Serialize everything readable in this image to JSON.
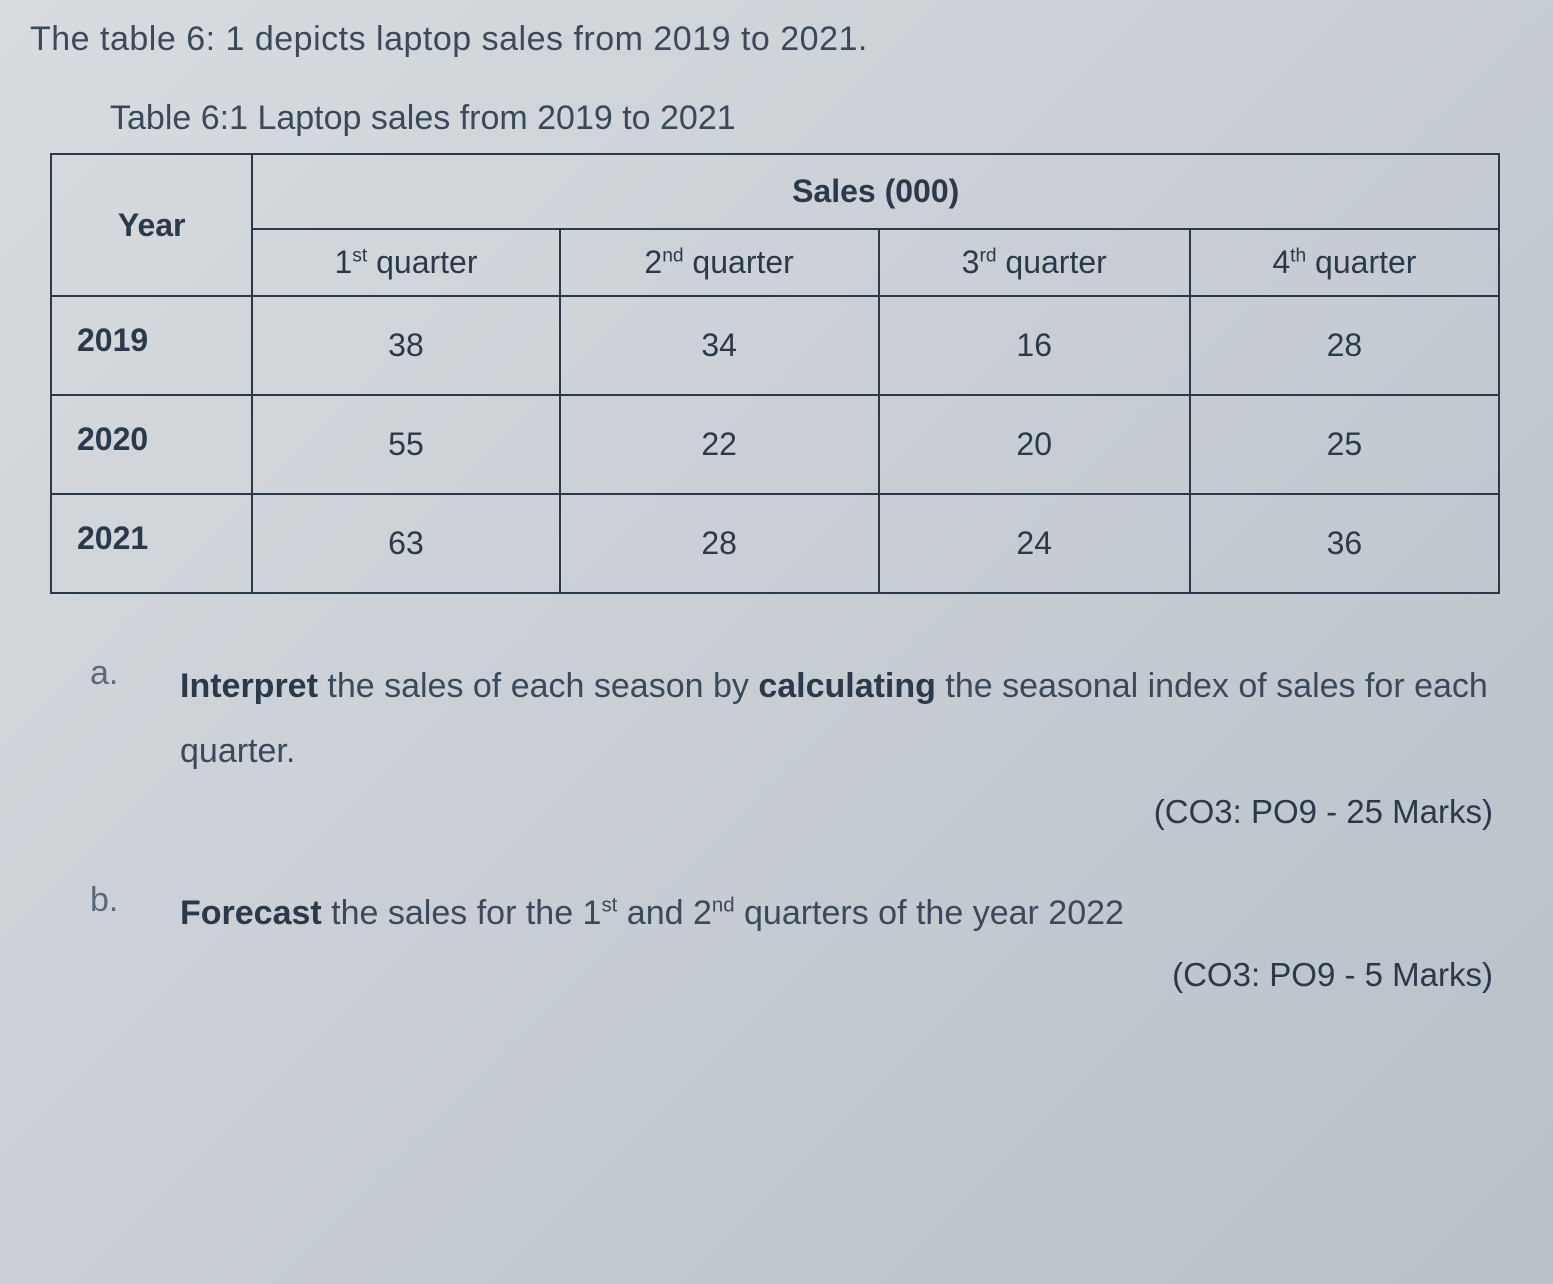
{
  "intro": "The table 6: 1 depicts laptop sales from 2019 to 2021.",
  "table": {
    "caption": "Table 6:1  Laptop sales from 2019 to 2021",
    "year_header": "Year",
    "sales_header": "Sales (000)",
    "columns": [
      {
        "ord": "1",
        "sup": "st",
        "label": " quarter"
      },
      {
        "ord": "2",
        "sup": "nd",
        "label": " quarter"
      },
      {
        "ord": "3",
        "sup": "rd",
        "label": " quarter"
      },
      {
        "ord": "4",
        "sup": "th",
        "label": " quarter"
      }
    ],
    "rows": [
      {
        "year": "2019",
        "values": [
          "38",
          "34",
          "16",
          "28"
        ]
      },
      {
        "year": "2020",
        "values": [
          "55",
          "22",
          "20",
          "25"
        ]
      },
      {
        "year": "2021",
        "values": [
          "63",
          "28",
          "24",
          "36"
        ]
      }
    ],
    "border_color": "#2a3a4a",
    "text_color": "#2a3a4a",
    "font_size": 32,
    "col_widths": [
      "260px",
      "295px",
      "295px",
      "295px",
      "295px"
    ]
  },
  "questions": {
    "a": {
      "letter": "a.",
      "bold1": "Interpret",
      "text1": " the sales of each season by ",
      "bold2": "calculating",
      "text2": " the seasonal index of sales for each quarter.",
      "marks": "(CO3: PO9 - 25 Marks)"
    },
    "b": {
      "letter": "b.",
      "bold1": "Forecast",
      "text1": " the sales for the 1",
      "sup1": "st",
      "text2": " and 2",
      "sup2": "nd",
      "text3": " quarters of the year 2022",
      "marks": "(CO3: PO9 - 5 Marks)"
    }
  },
  "style": {
    "background_gradient": [
      "#d8dce0",
      "#c8ced4",
      "#b8c0c8"
    ],
    "body_font_size": 34,
    "body_text_color": "#3a4a5a",
    "bold_color": "#2a3a4a"
  }
}
